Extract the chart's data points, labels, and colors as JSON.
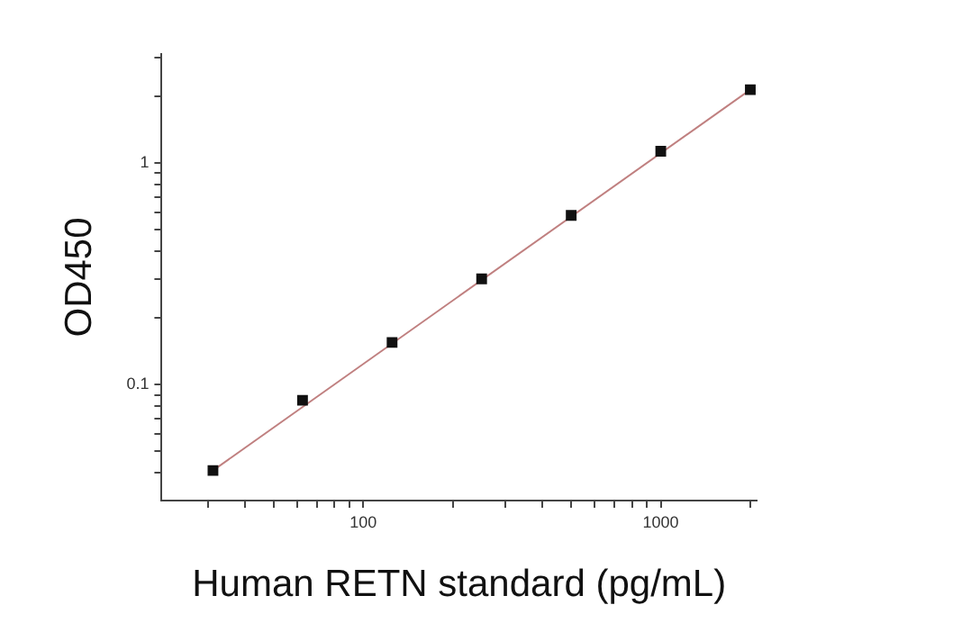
{
  "chart_data": {
    "type": "scatter",
    "xlabel": "Human RETN standard (pg/mL)",
    "ylabel": "OD450",
    "log": "xy",
    "grid": false,
    "legend": false,
    "xlim": [
      21,
      2100
    ],
    "ylim": [
      0.03,
      3.1
    ],
    "xticks": [
      {
        "value": 30,
        "label": null
      },
      {
        "value": 40,
        "label": null
      },
      {
        "value": 50,
        "label": null
      },
      {
        "value": 60,
        "label": null
      },
      {
        "value": 70,
        "label": null
      },
      {
        "value": 80,
        "label": null
      },
      {
        "value": 90,
        "label": null
      },
      100,
      {
        "value": 200,
        "label": null
      },
      {
        "value": 300,
        "label": null
      },
      {
        "value": 400,
        "label": null
      },
      {
        "value": 500,
        "label": null
      },
      {
        "value": 600,
        "label": null
      },
      {
        "value": 700,
        "label": null
      },
      {
        "value": 800,
        "label": null
      },
      {
        "value": 900,
        "label": null
      },
      1000,
      {
        "value": 2000,
        "label": null
      }
    ],
    "yticks": [
      {
        "value": 0.04,
        "label": null
      },
      {
        "value": 0.05,
        "label": null
      },
      {
        "value": 0.06,
        "label": null
      },
      {
        "value": 0.07,
        "label": null
      },
      {
        "value": 0.08,
        "label": null
      },
      {
        "value": 0.09,
        "label": null
      },
      0.1,
      {
        "value": 0.2,
        "label": null
      },
      {
        "value": 0.3,
        "label": null
      },
      {
        "value": 0.4,
        "label": null
      },
      {
        "value": 0.5,
        "label": null
      },
      {
        "value": 0.6,
        "label": null
      },
      {
        "value": 0.7,
        "label": null
      },
      {
        "value": 0.8,
        "label": null
      },
      {
        "value": 0.9,
        "label": null
      },
      1,
      {
        "value": 2,
        "label": null
      },
      {
        "value": 3,
        "label": null
      }
    ],
    "series": [
      {
        "marker": "square",
        "color": "#111111",
        "x": [
          31.25,
          62.5,
          125,
          250,
          500,
          1000,
          2000
        ],
        "values": [
          0.041,
          0.085,
          0.155,
          0.3,
          0.58,
          1.13,
          2.14
        ]
      },
      {
        "type": "line",
        "marker": "none",
        "color": "#c08080",
        "x": [
          31.25,
          2000
        ],
        "values": [
          0.041,
          2.14
        ]
      }
    ]
  }
}
